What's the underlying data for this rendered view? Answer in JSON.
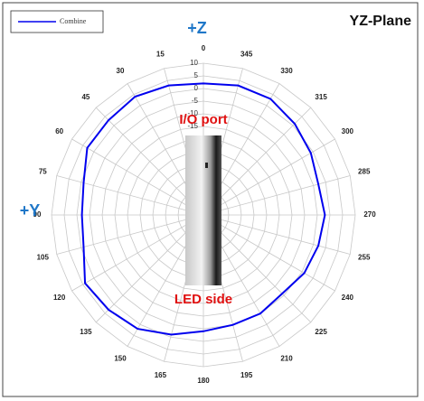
{
  "chart_data": {
    "type": "polar",
    "title": "YZ-Plane",
    "annotations": {
      "z_axis": "+Z",
      "y_axis": "+Y",
      "top": "I/O port",
      "bottom": "LED side"
    },
    "theta": [
      0,
      15,
      30,
      45,
      60,
      75,
      90,
      105,
      120,
      135,
      150,
      165,
      180,
      195,
      210,
      225,
      240,
      255,
      270,
      285,
      300,
      315,
      330,
      345
    ],
    "series": [
      {
        "name": "Combine",
        "color": "#0000ee",
        "values": [
          2,
          3,
          4,
          3,
          3,
          -1,
          -2,
          -1,
          4,
          3,
          2,
          -1,
          -4,
          -5,
          -5,
          -6,
          -4,
          -3,
          -2,
          -3,
          -1,
          1,
          3,
          3
        ]
      }
    ],
    "rlim": [
      -50,
      10
    ],
    "rticks": [
      10,
      5,
      0,
      -5,
      -10,
      -15,
      -20,
      -25,
      -30,
      -35,
      -40,
      -45
    ],
    "grid": true,
    "legend": "top-left"
  }
}
